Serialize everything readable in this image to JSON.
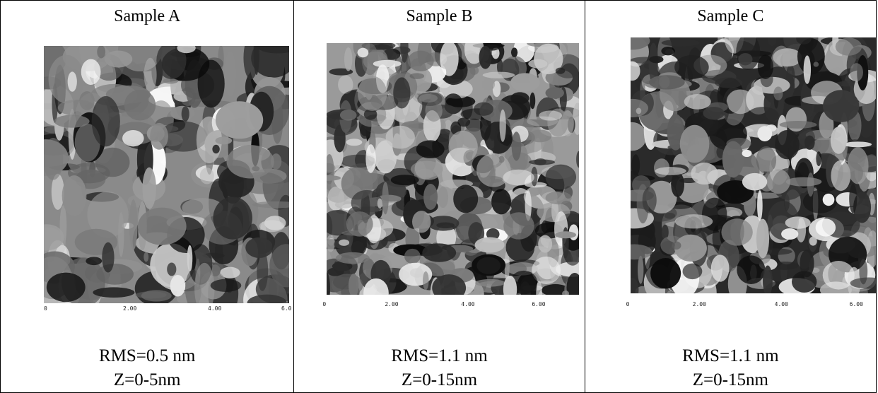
{
  "samples": [
    {
      "title": "Sample A",
      "rms": "RMS=0.5 nm",
      "z": "Z=0-5nm",
      "ticks": [
        "0",
        "2.00",
        "4.00",
        "6.0"
      ]
    },
    {
      "title": "Sample B",
      "rms": "RMS=1.1 nm",
      "z": "Z=0-15nm",
      "ticks": [
        "0",
        "2.00",
        "4.00",
        "6.00"
      ]
    },
    {
      "title": "Sample C",
      "rms": "RMS=1.1 nm",
      "z": "Z=0-15nm",
      "ticks": [
        "0",
        "2.00",
        "4.00",
        "6.00"
      ]
    }
  ]
}
